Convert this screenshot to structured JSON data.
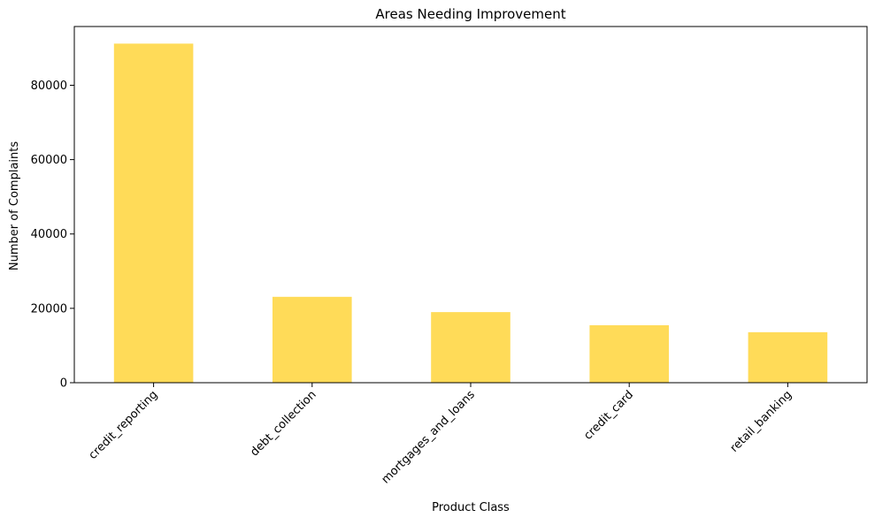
{
  "chart_data": {
    "type": "bar",
    "title": "Areas Needing Improvement",
    "xlabel": "Product Class",
    "ylabel": "Number of Complaints",
    "categories": [
      "credit_reporting",
      "debt_collection",
      "mortgages_and_loans",
      "credit_card",
      "retail_banking"
    ],
    "values": [
      91200,
      23100,
      18990,
      15450,
      13580
    ],
    "ylim": [
      0,
      95800
    ],
    "yticks": [
      0,
      20000,
      40000,
      60000,
      80000
    ],
    "ytick_labels": [
      "0",
      "20000",
      "40000",
      "60000",
      "80000"
    ],
    "bar_color": "#FFDB58",
    "grid": false,
    "legend": "none"
  }
}
